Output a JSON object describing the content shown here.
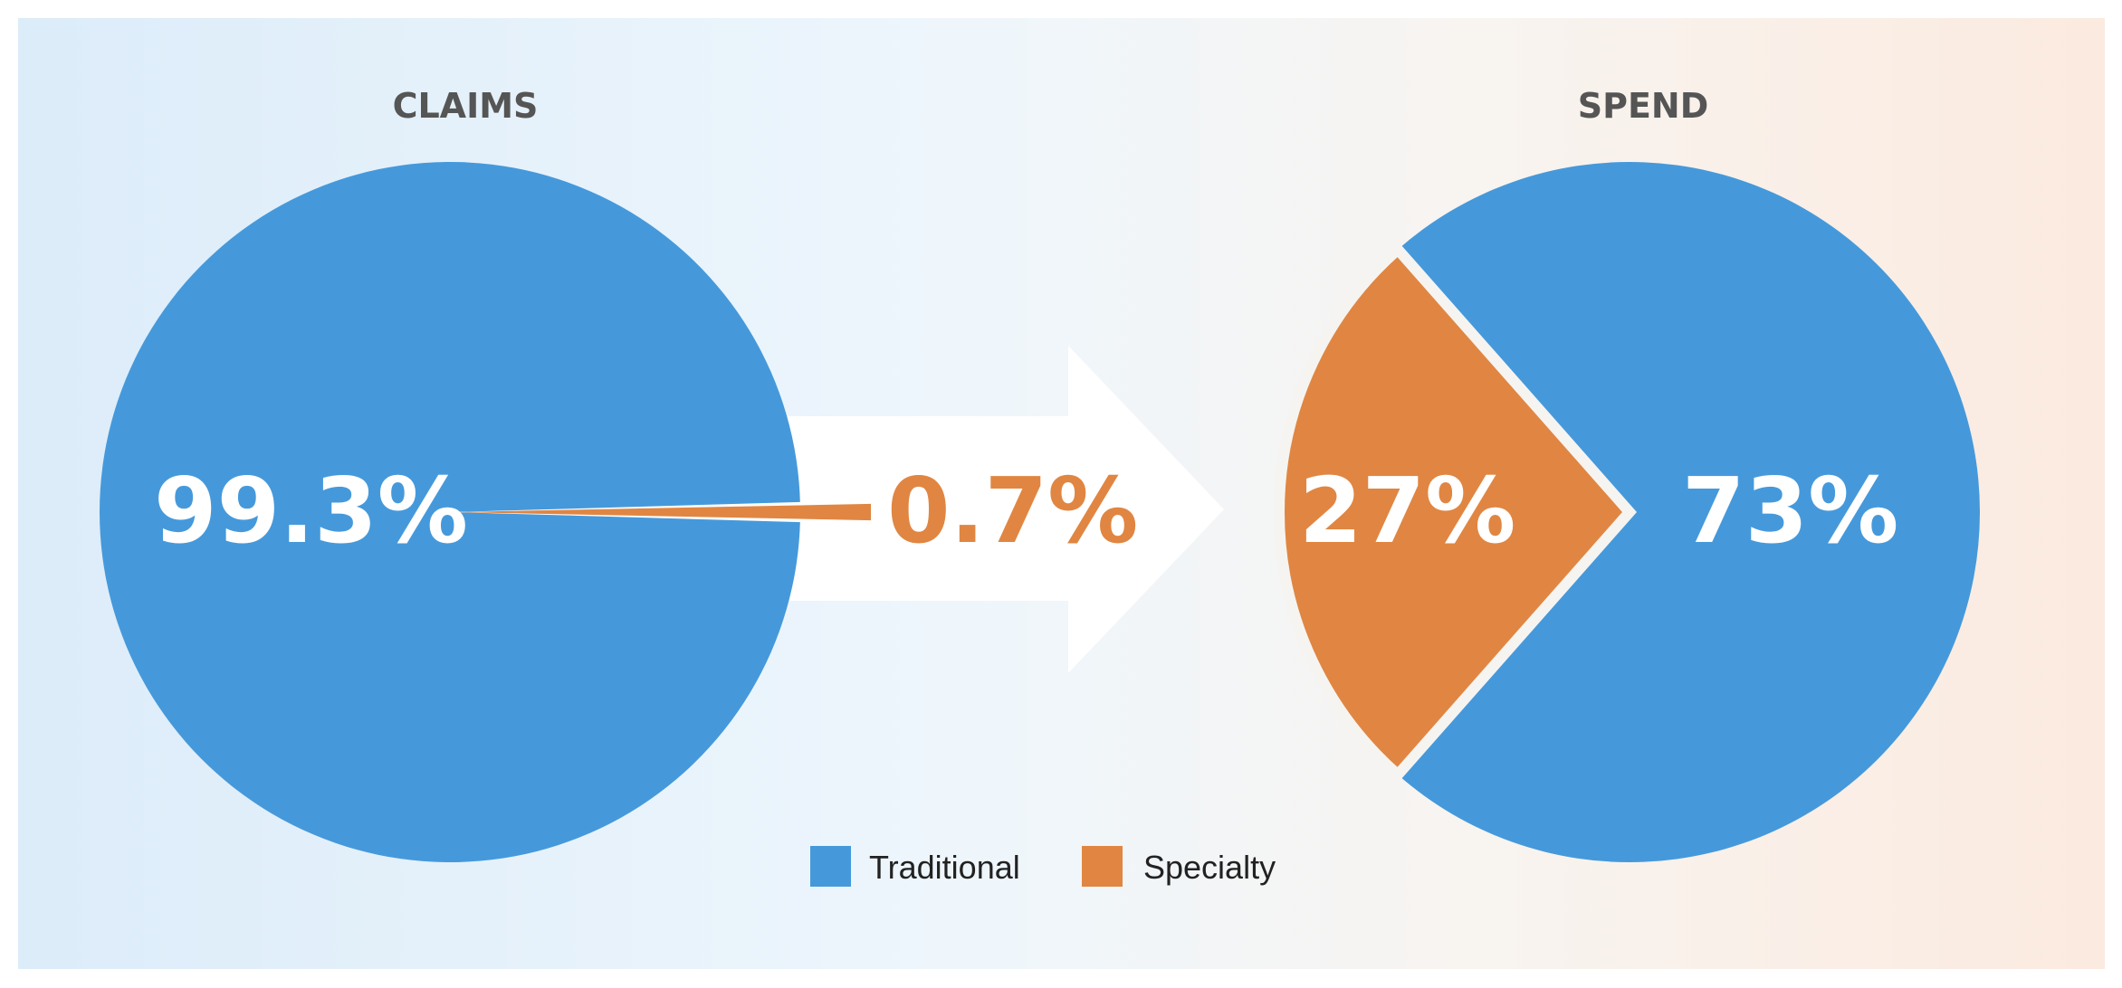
{
  "chart_data": [
    {
      "type": "pie",
      "title": "CLAIMS",
      "slices": [
        {
          "name": "Traditional",
          "value": 99.3,
          "label": "99.3%"
        },
        {
          "name": "Specialty",
          "value": 0.7,
          "label": "0.7%"
        }
      ]
    },
    {
      "type": "pie",
      "title": "SPEND",
      "slices": [
        {
          "name": "Traditional",
          "value": 73,
          "label": "73%"
        },
        {
          "name": "Specialty",
          "value": 27,
          "label": "27%"
        }
      ]
    }
  ],
  "legend": [
    {
      "name": "Traditional",
      "color": "#4599db"
    },
    {
      "name": "Specialty",
      "color": "#e08642"
    }
  ],
  "colors": {
    "traditional": "#4599db",
    "specialty": "#e08642",
    "arrow": "#ffffff"
  },
  "legend_placement": "bottom-center"
}
